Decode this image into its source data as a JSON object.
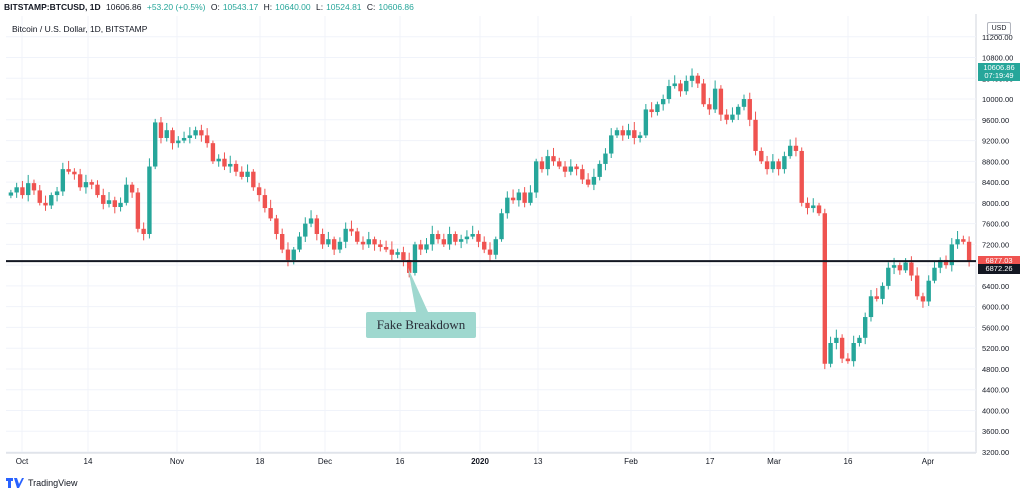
{
  "header": {
    "symbol": "BITSTAMP:BTCUSD, 1D",
    "last": "10606.86",
    "change": "+53.20 (+0.5%)",
    "o_label": "O:",
    "o_value": "10543.17",
    "h_label": "H:",
    "h_value": "10640.00",
    "l_label": "L:",
    "l_value": "10524.81",
    "c_label": "C:",
    "c_value": "10606.86",
    "subtitle": "Bitcoin / U.S. Dollar, 1D, BITSTAMP"
  },
  "price_scale": {
    "currency": "USD",
    "tags": [
      {
        "text": "10606.86",
        "color": "#26a69a",
        "price": 10606.86
      },
      {
        "text": "07:19:49",
        "color": "#26a69a",
        "price": 10440
      },
      {
        "text": "6877.03",
        "color": "#ef5350",
        "price": 6877.03
      },
      {
        "text": "6872.26",
        "color": "#131722",
        "price": 6720
      }
    ]
  },
  "annotation": {
    "text": "Fake Breakdown",
    "pointer_date": "Dec 16",
    "pointer_price": 6750
  },
  "footer": {
    "brand": "TradingView"
  },
  "colors": {
    "up": "#26a69a",
    "down": "#ef5350",
    "line": "#131722",
    "grid": "#f0f3fa"
  },
  "chart_data": {
    "type": "candlestick",
    "title": "Bitcoin / U.S. Dollar, 1D, BITSTAMP",
    "ylim": [
      3200,
      11600
    ],
    "y_ticks": [
      3200,
      3600,
      4000,
      4400,
      4800,
      5200,
      5600,
      6000,
      6400,
      6800,
      7200,
      7600,
      8000,
      8400,
      8800,
      9200,
      9600,
      10000,
      10400,
      10800,
      11200
    ],
    "x_ticks": [
      "Oct",
      "14",
      "Nov",
      "18",
      "Dec",
      "16",
      "2020",
      "13",
      "Feb",
      "17",
      "Mar",
      "16",
      "Apr"
    ],
    "x_ticks_bold": [
      "2020"
    ],
    "horizontal_line": 6877,
    "candles_close": [
      8200,
      8300,
      8150,
      8380,
      8240,
      8000,
      7950,
      8150,
      8220,
      8650,
      8600,
      8550,
      8300,
      8400,
      8350,
      8150,
      7980,
      8050,
      7920,
      8000,
      8350,
      8200,
      7500,
      7400,
      8700,
      9550,
      9250,
      9400,
      9150,
      9200,
      9250,
      9300,
      9400,
      9300,
      9150,
      8800,
      8850,
      8700,
      8750,
      8600,
      8500,
      8600,
      8300,
      8150,
      7900,
      7700,
      7400,
      7100,
      6900,
      7100,
      7350,
      7600,
      7700,
      7400,
      7200,
      7300,
      7100,
      7250,
      7500,
      7450,
      7250,
      7200,
      7300,
      7200,
      7150,
      7100,
      7000,
      7050,
      6900,
      6650,
      7200,
      7100,
      7200,
      7400,
      7300,
      7200,
      7400,
      7250,
      7300,
      7350,
      7400,
      7250,
      7100,
      7000,
      7300,
      7800,
      8100,
      8050,
      8200,
      8000,
      8200,
      8800,
      8650,
      8900,
      8800,
      8700,
      8600,
      8700,
      8650,
      8450,
      8350,
      8500,
      8750,
      8950,
      9300,
      9400,
      9300,
      9400,
      9250,
      9300,
      9800,
      9750,
      9900,
      10000,
      10250,
      10300,
      10150,
      10350,
      10450,
      10300,
      9900,
      9800,
      10200,
      9700,
      9600,
      9700,
      9850,
      10000,
      9600,
      9000,
      8800,
      8650,
      8800,
      8650,
      8900,
      9100,
      9000,
      8000,
      7900,
      7950,
      7800,
      4900,
      5300,
      5400,
      5000,
      4950,
      5300,
      5400,
      5800,
      6200,
      6150,
      6400,
      6750,
      6800,
      6700,
      6850,
      6600,
      6200,
      6100,
      6500,
      6750,
      6900,
      6800,
      7200,
      7300,
      7250,
      6877
    ]
  }
}
